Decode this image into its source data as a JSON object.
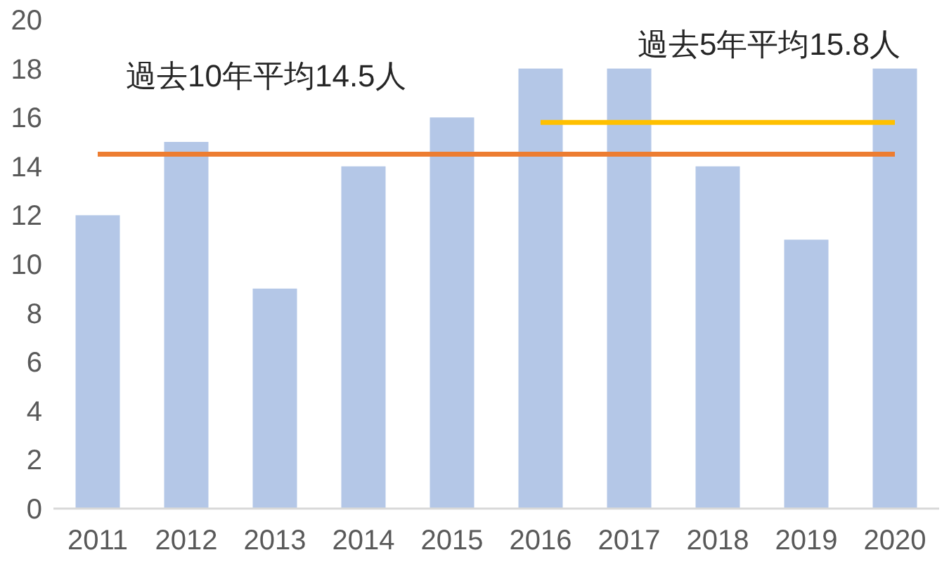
{
  "chart_data": {
    "type": "bar",
    "categories": [
      "2011",
      "2012",
      "2013",
      "2014",
      "2015",
      "2016",
      "2017",
      "2018",
      "2019",
      "2020"
    ],
    "series": [
      {
        "color": "#b4c7e7",
        "values": [
          12,
          15,
          9,
          14,
          16,
          18,
          18,
          14,
          11,
          18
        ]
      },
      {
        "type": "line",
        "name": "過去10年平均14.5人",
        "color": "#ed7d31",
        "values": [
          14.5,
          14.5,
          14.5,
          14.5,
          14.5,
          14.5,
          14.5,
          14.5,
          14.5,
          14.5
        ]
      },
      {
        "type": "line",
        "name": "過去5年平均15.8人",
        "color": "#ffc000",
        "values": [
          null,
          null,
          null,
          null,
          null,
          15.8,
          15.8,
          15.8,
          15.8,
          15.8
        ]
      }
    ],
    "ylim": [
      0,
      20
    ],
    "yticks": [
      0,
      2,
      4,
      6,
      8,
      10,
      12,
      14,
      16,
      18,
      20
    ],
    "marker": "none",
    "line_style": "solid"
  }
}
